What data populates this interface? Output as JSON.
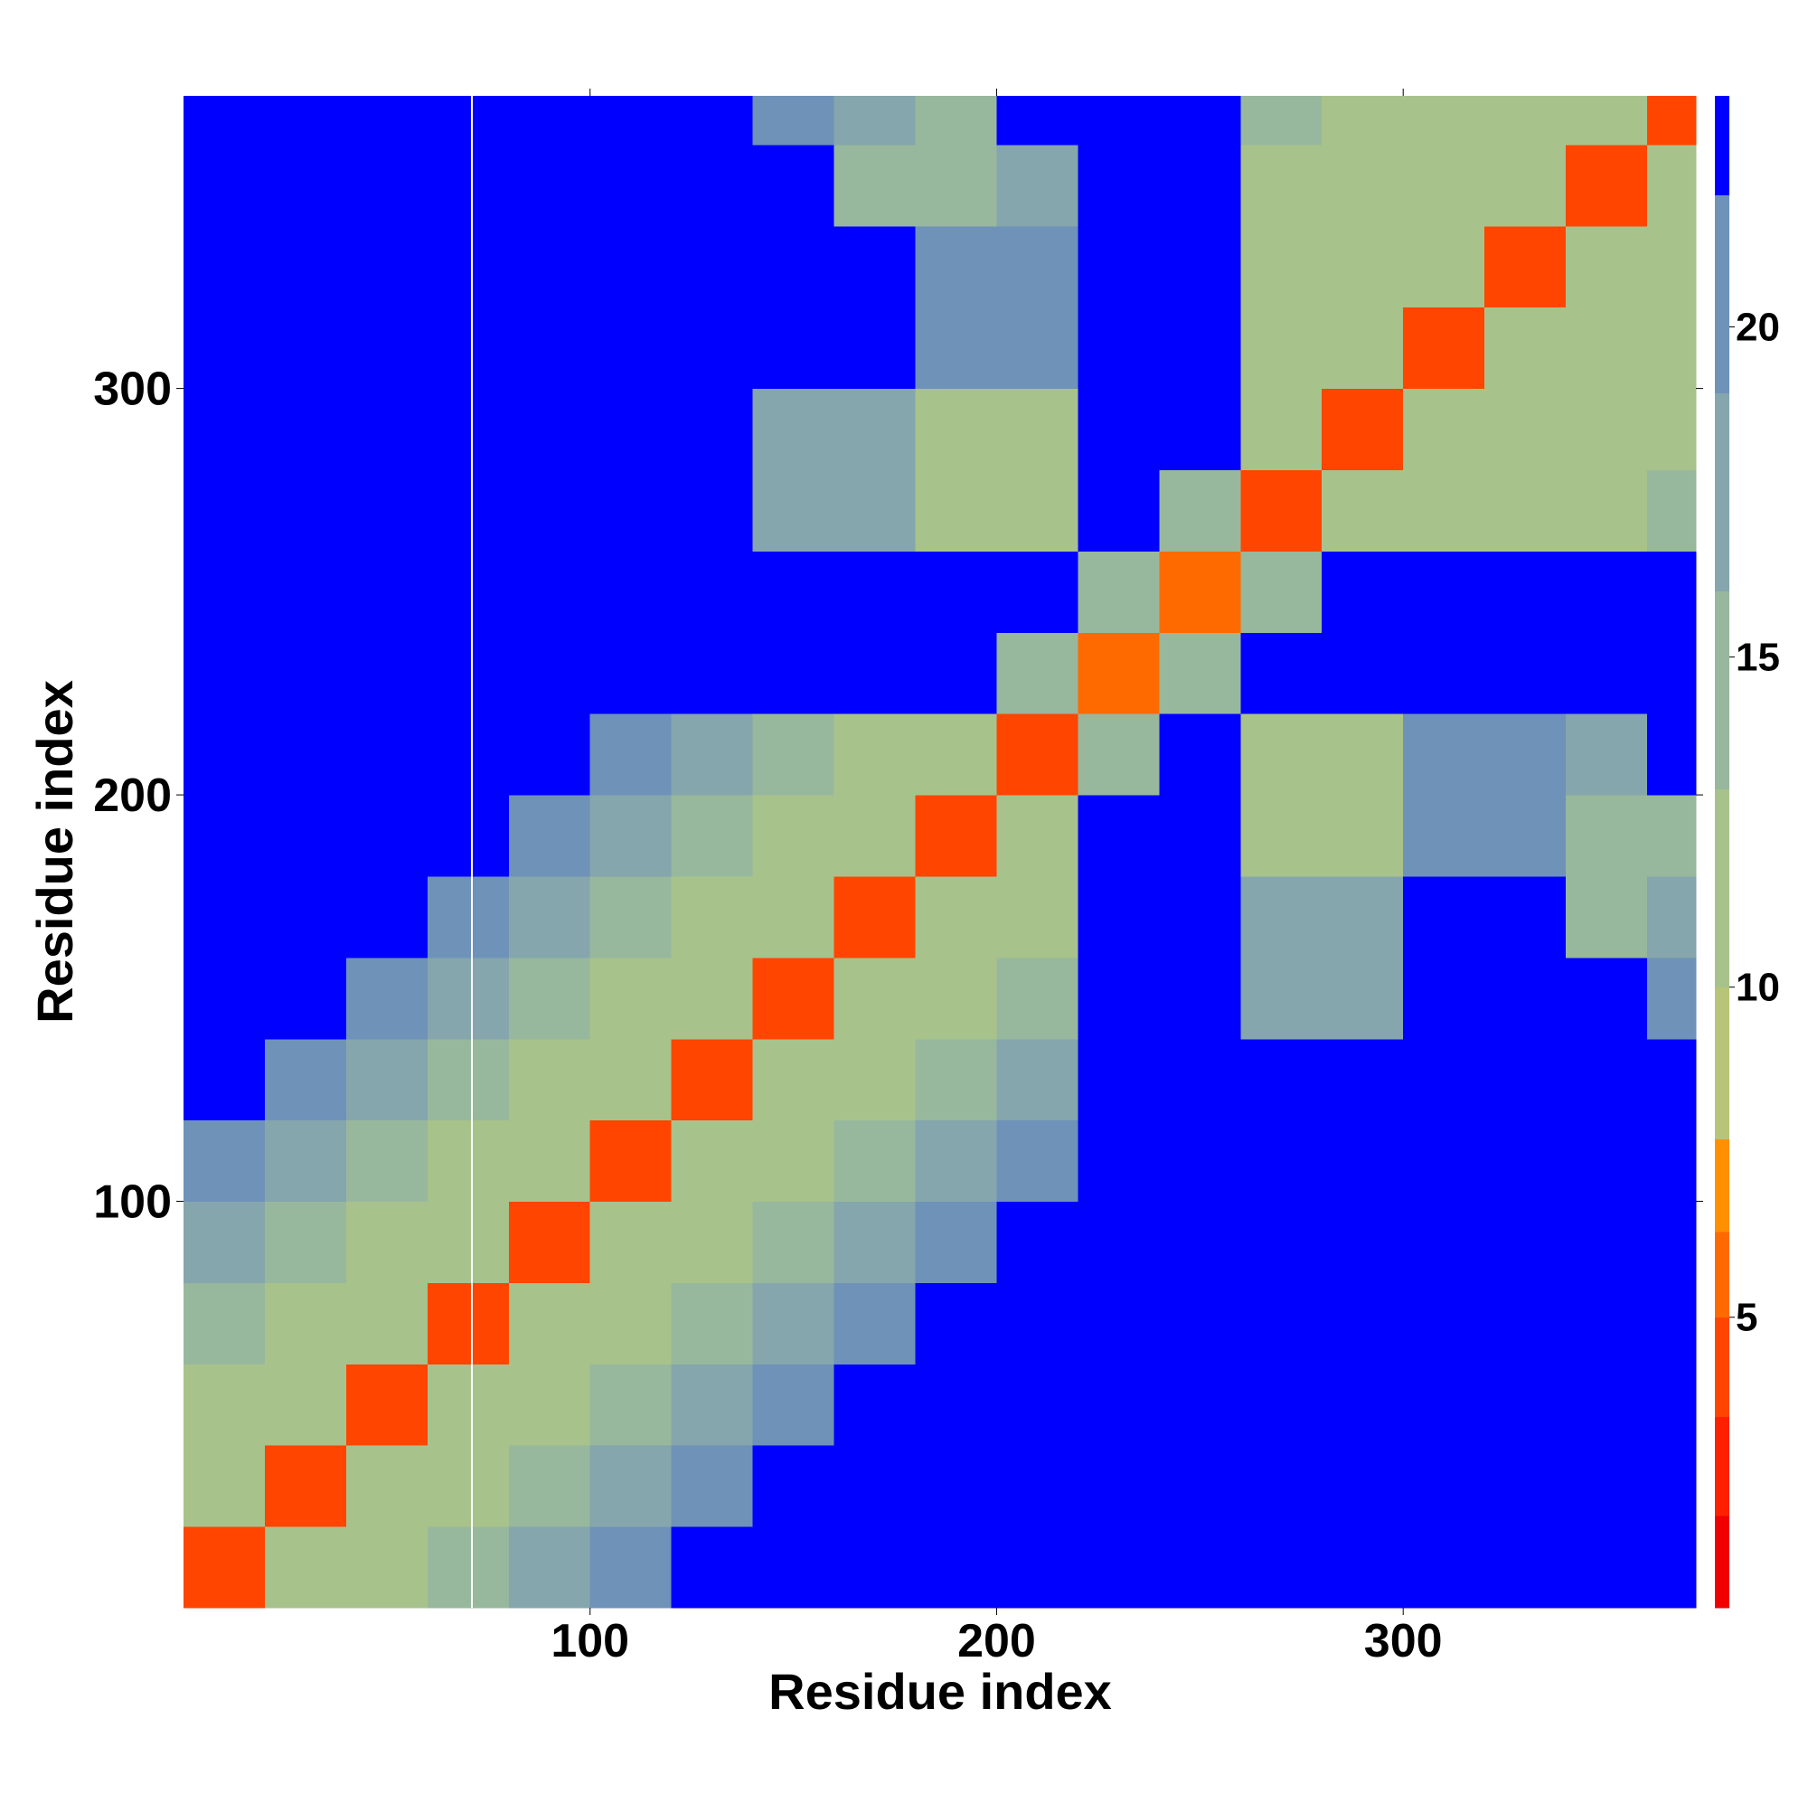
{
  "chart_data": {
    "type": "heatmap",
    "xlabel": "Residue index",
    "ylabel": "Residue index",
    "xlim": [
      0,
      372
    ],
    "ylim": [
      0,
      372
    ],
    "xticks": [
      100,
      200,
      300
    ],
    "yticks": [
      100,
      200,
      300
    ],
    "x_bins": [
      0,
      20,
      40,
      60,
      80,
      100,
      120,
      140,
      160,
      180,
      200,
      220,
      240,
      260,
      280,
      300,
      320,
      340,
      360,
      372
    ],
    "y_bins": [
      0,
      20,
      40,
      60,
      80,
      100,
      120,
      140,
      160,
      180,
      200,
      220,
      240,
      260,
      280,
      300,
      320,
      340,
      360,
      372
    ],
    "z": [
      [
        4,
        11,
        12,
        14,
        17,
        20,
        23,
        23,
        23,
        23,
        23,
        23,
        23,
        23,
        23,
        23,
        23,
        23,
        23
      ],
      [
        11,
        4,
        11,
        12,
        14,
        17,
        20,
        23,
        23,
        23,
        23,
        23,
        23,
        23,
        23,
        23,
        23,
        23,
        23
      ],
      [
        12,
        11,
        4,
        11,
        12,
        14,
        17,
        20,
        23,
        23,
        23,
        23,
        23,
        23,
        23,
        23,
        23,
        23,
        23
      ],
      [
        14,
        12,
        11,
        4,
        11,
        12,
        14,
        17,
        20,
        23,
        23,
        23,
        23,
        23,
        23,
        23,
        23,
        23,
        23
      ],
      [
        17,
        14,
        12,
        11,
        4,
        11,
        12,
        14,
        17,
        20,
        23,
        23,
        23,
        23,
        23,
        23,
        23,
        23,
        23
      ],
      [
        20,
        17,
        14,
        12,
        11,
        4,
        11,
        12,
        14,
        17,
        20,
        23,
        23,
        23,
        23,
        23,
        23,
        23,
        23
      ],
      [
        23,
        20,
        17,
        14,
        12,
        11,
        4,
        11,
        12,
        14,
        17,
        23,
        23,
        23,
        23,
        23,
        23,
        23,
        23
      ],
      [
        23,
        23,
        20,
        17,
        14,
        12,
        11,
        4,
        11,
        12,
        14,
        23,
        23,
        16,
        18,
        23,
        23,
        23,
        20
      ],
      [
        23,
        23,
        23,
        20,
        17,
        14,
        12,
        11,
        4,
        11,
        12,
        23,
        23,
        16,
        18,
        23,
        23,
        15,
        16
      ],
      [
        23,
        23,
        23,
        23,
        20,
        17,
        14,
        12,
        11,
        4,
        11,
        23,
        23,
        12,
        12,
        19,
        19,
        13,
        13
      ],
      [
        23,
        23,
        23,
        23,
        23,
        20,
        17,
        14,
        12,
        11,
        4,
        15,
        23,
        12,
        12,
        19,
        19,
        16,
        23
      ],
      [
        23,
        23,
        23,
        23,
        23,
        23,
        23,
        23,
        23,
        23,
        15,
        6,
        14,
        23,
        23,
        23,
        23,
        23,
        23
      ],
      [
        23,
        23,
        23,
        23,
        23,
        23,
        23,
        23,
        23,
        23,
        23,
        14,
        6,
        13,
        23,
        23,
        23,
        23,
        23
      ],
      [
        23,
        23,
        23,
        23,
        23,
        23,
        23,
        16,
        16,
        12,
        12,
        23,
        13,
        4,
        12,
        12,
        12,
        12,
        14
      ],
      [
        23,
        23,
        23,
        23,
        23,
        23,
        23,
        18,
        18,
        12,
        12,
        23,
        23,
        12,
        4,
        12,
        12,
        12,
        12
      ],
      [
        23,
        23,
        23,
        23,
        23,
        23,
        23,
        23,
        23,
        19,
        19,
        23,
        23,
        12,
        12,
        4,
        12,
        12,
        12
      ],
      [
        23,
        23,
        23,
        23,
        23,
        23,
        23,
        23,
        23,
        19,
        19,
        23,
        23,
        12,
        12,
        12,
        4,
        12,
        12
      ],
      [
        23,
        23,
        23,
        23,
        23,
        23,
        23,
        23,
        15,
        13,
        16,
        23,
        23,
        12,
        12,
        12,
        12,
        4,
        12
      ],
      [
        23,
        23,
        23,
        23,
        23,
        23,
        23,
        20,
        16,
        13,
        23,
        23,
        23,
        14,
        12,
        12,
        12,
        12,
        4
      ]
    ],
    "colorbar": {
      "bounds": [
        0.6,
        2,
        3.5,
        5,
        6.3,
        7.7,
        10,
        13,
        16,
        19,
        22,
        23.5
      ],
      "colors": [
        "#f00000",
        "#ff2000",
        "#ff4500",
        "#ff6a00",
        "#ff9000",
        "#b8c478",
        "#a8c28c",
        "#97b89c",
        "#85a6ad",
        "#6f92b8",
        "#0000ff"
      ],
      "ticks": [
        5,
        10,
        15,
        20
      ]
    }
  }
}
